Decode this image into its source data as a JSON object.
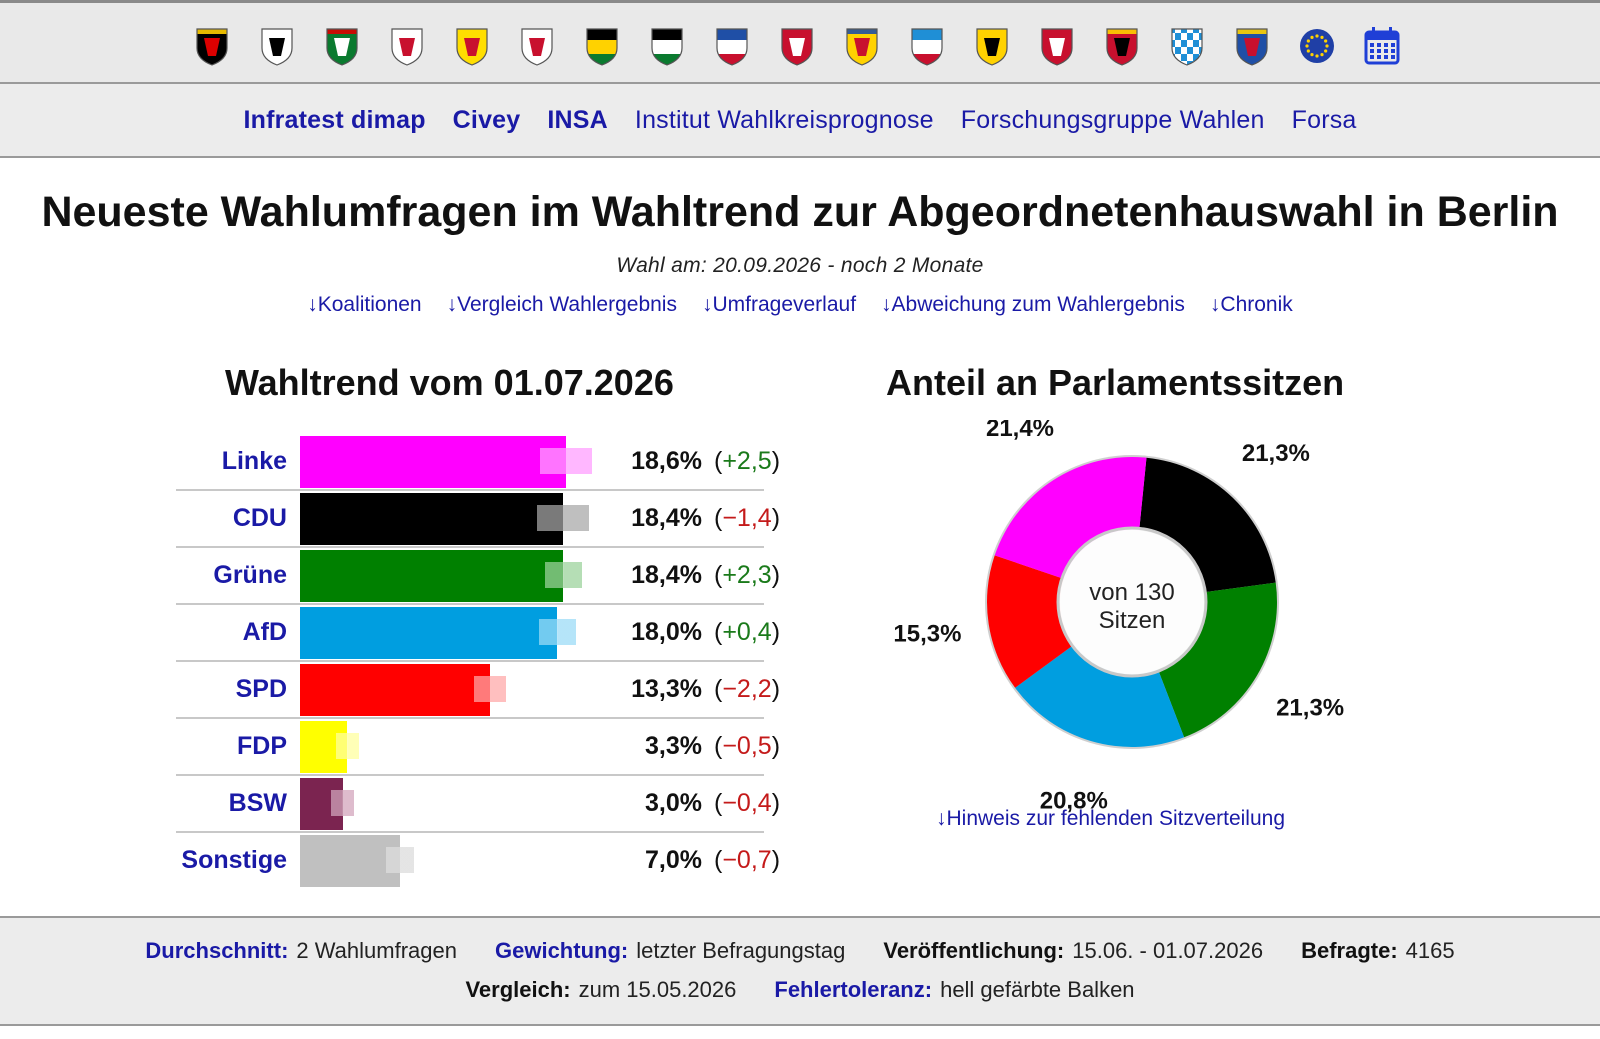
{
  "icon_bar": [
    {
      "name": "bund-flag-icon",
      "kind": "coat",
      "colors": [
        "#000",
        "#dd0000",
        "#ffce00"
      ]
    },
    {
      "name": "berlin-flag-icon",
      "kind": "bear",
      "colors": [
        "#fff",
        "#000"
      ]
    },
    {
      "name": "nrw-flag-icon",
      "kind": "shield",
      "colors": [
        "#0a7a2f",
        "#ffffff",
        "#dd0000"
      ]
    },
    {
      "name": "brandenburg-flag-icon",
      "kind": "shield",
      "colors": [
        "#fff",
        "#c8102e"
      ]
    },
    {
      "name": "bavaria-sachsen-anhalt-flag-icon",
      "kind": "shield",
      "colors": [
        "#ffde00",
        "#c8102e"
      ]
    },
    {
      "name": "hamburg-flag-icon",
      "kind": "shield",
      "colors": [
        "#fff",
        "#c8102e"
      ]
    },
    {
      "name": "sachsen-flag-icon",
      "kind": "stripes",
      "colors": [
        "#000",
        "#ffd200",
        "#0a7a2f"
      ]
    },
    {
      "name": "sachsen-anhalt-flag-icon",
      "kind": "stripes",
      "colors": [
        "#000",
        "#ffffff",
        "#0a7a2f"
      ]
    },
    {
      "name": "hessen-flag-icon",
      "kind": "stripes",
      "colors": [
        "#1f4fa6",
        "#ffffff",
        "#c8102e"
      ]
    },
    {
      "name": "niedersachsen-flag-icon",
      "kind": "shield",
      "colors": [
        "#c8102e",
        "#ffffff"
      ]
    },
    {
      "name": "schleswig-holstein-flag-icon",
      "kind": "shield",
      "colors": [
        "#ffd200",
        "#c8102e",
        "#1f4fa6"
      ]
    },
    {
      "name": "thueringen-flag-icon",
      "kind": "stripes",
      "colors": [
        "#1f8fd6",
        "#ffffff",
        "#c8102e"
      ]
    },
    {
      "name": "baden-wuerttemberg-flag-icon",
      "kind": "shield",
      "colors": [
        "#ffd200",
        "#000"
      ]
    },
    {
      "name": "bremen-flag-icon",
      "kind": "shield",
      "colors": [
        "#c8102e",
        "#fff"
      ]
    },
    {
      "name": "rheinland-pfalz-flag-icon",
      "kind": "shield",
      "colors": [
        "#c8102e",
        "#000",
        "#ffd200"
      ]
    },
    {
      "name": "bayern-flag-icon",
      "kind": "diamonds",
      "colors": [
        "#1f8fd6",
        "#ffffff"
      ]
    },
    {
      "name": "saarland-flag-icon",
      "kind": "shield",
      "colors": [
        "#1f4fa6",
        "#c8102e",
        "#ffd200"
      ]
    },
    {
      "name": "eu-flag-icon",
      "kind": "eu",
      "colors": [
        "#1f3fa6",
        "#ffd200"
      ]
    },
    {
      "name": "calendar-icon",
      "kind": "calendar",
      "colors": [
        "#1f3fd6",
        "#ffffff"
      ]
    }
  ],
  "institutes": [
    {
      "label": "Infratest dimap",
      "bold": true
    },
    {
      "label": "Civey",
      "bold": true
    },
    {
      "label": "INSA",
      "bold": true
    },
    {
      "label": "Institut Wahlkreisprognose",
      "bold": false
    },
    {
      "label": "Forschungsgruppe Wahlen",
      "bold": false
    },
    {
      "label": "Forsa",
      "bold": false
    }
  ],
  "page_title": "Neueste Wahlumfragen im Wahltrend zur Abgeordnetenhauswahl in Berlin",
  "election_date": "Wahl am: 20.09.2026 - noch 2 Monate",
  "jump_links": [
    "↓Koalitionen",
    "↓Vergleich Wahlergebnis",
    "↓Umfrageverlauf",
    "↓Abweichung zum Wahlergebnis",
    "↓Chronik"
  ],
  "trend_title": "Wahltrend vom 01.07.2026",
  "seats_title": "Anteil an Parlamentssitzen",
  "colors": {
    "link": "#1a1aa6",
    "positive": "#1a7a1a",
    "negative": "#c41a1a"
  },
  "chart_data": [
    {
      "type": "bar",
      "categories": [
        "Linke",
        "CDU",
        "Grüne",
        "AfD",
        "SPD",
        "FDP",
        "BSW",
        "Sonstige"
      ],
      "values": [
        18.6,
        18.4,
        18.4,
        18.0,
        13.3,
        3.3,
        3.0,
        7.0
      ],
      "value_labels": [
        "18,6%",
        "18,4%",
        "18,4%",
        "18,0%",
        "13,3%",
        "3,3%",
        "3,0%",
        "7,0%"
      ],
      "changes": [
        "+2,5",
        "−1,4",
        "+2,3",
        "+0,4",
        "−2,2",
        "−0,5",
        "−0,4",
        "−0,7"
      ],
      "change_sign": [
        1,
        -1,
        1,
        1,
        -1,
        -1,
        -1,
        -1
      ],
      "colors": [
        "#ff00ff",
        "#000000",
        "#008000",
        "#009ee0",
        "#ff0000",
        "#ffff00",
        "#7b2450",
        "#c0c0c0"
      ],
      "error_colors": [
        "#ffaaff",
        "#b4b4b4",
        "#a8d8a8",
        "#a8e0f8",
        "#ffb4b4",
        "#ffffaa",
        "#d8b0c4",
        "#e0e0e0"
      ],
      "error_margin": [
        1.8,
        1.8,
        1.3,
        1.3,
        1.1,
        0.8,
        0.8,
        1.0
      ],
      "xlim": [
        0,
        25
      ]
    },
    {
      "type": "pie",
      "categories": [
        "CDU",
        "Grüne",
        "AfD",
        "SPD",
        "Linke"
      ],
      "values": [
        21.3,
        21.3,
        20.8,
        15.3,
        21.4
      ],
      "value_labels": [
        "21,3%",
        "21,3%",
        "20,8%",
        "15,3%",
        "21,4%"
      ],
      "colors": [
        "#000000",
        "#008000",
        "#009ee0",
        "#ff0000",
        "#ff00ff"
      ],
      "center_label": "von 130",
      "center_label2": "Sitzen"
    }
  ],
  "seat_hint": "↓Hinweis zur fehlenden Sitzverteilung",
  "footer": {
    "row1": [
      {
        "key": "Durchschnitt:",
        "value": "2 Wahlumfragen",
        "blue": true
      },
      {
        "key": "Gewichtung:",
        "value": "letzter Befragungstag",
        "blue": true
      },
      {
        "key": "Veröffentlichung:",
        "value": "15.06. - 01.07.2026",
        "blue": false
      },
      {
        "key": "Befragte:",
        "value": "4165",
        "blue": false
      }
    ],
    "row2": [
      {
        "key": "Vergleich:",
        "value": "zum 15.05.2026",
        "blue": false
      },
      {
        "key": "Fehlertoleranz:",
        "value": "hell gefärbte Balken",
        "blue": true
      }
    ]
  }
}
